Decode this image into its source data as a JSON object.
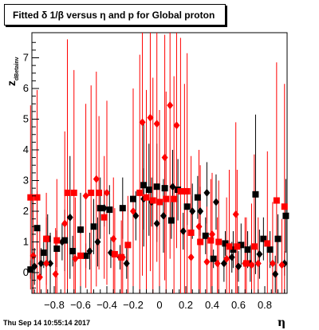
{
  "header": {
    "title": "Fitted δ 1/β versus η and p for Global proton"
  },
  "footer": {
    "timestamp": "Thu Sep 14 10:55:14 2017"
  },
  "chart_data": {
    "type": "scatter",
    "title": "Fitted δ 1/β versus η and p for Global proton",
    "xlabel": "η",
    "ylabel_main": "z",
    "ylabel_sub": "dBetainv",
    "xlim": [
      -1.0,
      1.0
    ],
    "ylim": [
      -0.75,
      7.8
    ],
    "xticks": [
      -0.8,
      -0.6,
      -0.4,
      -0.2,
      0,
      0.2,
      0.4,
      0.6,
      0.8
    ],
    "xtick_labels": [
      "−0.8",
      "−0.6",
      "−0.4",
      "−0.2",
      "0",
      "0.2",
      "0.4",
      "0.6",
      "0.8"
    ],
    "yticks": [
      0,
      1,
      2,
      3,
      4,
      5,
      6,
      7
    ],
    "ytick_labels": [
      "0",
      "1",
      "2",
      "3",
      "4",
      "5",
      "6",
      "7"
    ],
    "grid": false,
    "series": [
      {
        "color": "#000000",
        "marker": "square",
        "points": [
          {
            "x": -0.98,
            "y": 0.1,
            "err": 0.3
          },
          {
            "x": -0.93,
            "y": 1.45,
            "err": 1.2
          },
          {
            "x": -0.88,
            "y": 0.65,
            "err": 0.5
          },
          {
            "x": -0.85,
            "y": 1.1,
            "err": 0.8
          },
          {
            "x": -0.78,
            "y": 0.78,
            "err": 0.6
          },
          {
            "x": -0.72,
            "y": 1.05,
            "err": 1.0
          },
          {
            "x": -0.66,
            "y": 0.7,
            "err": 0.5
          },
          {
            "x": -0.6,
            "y": 1.4,
            "err": 1.2
          },
          {
            "x": -0.56,
            "y": 0.55,
            "err": 0.4
          },
          {
            "x": -0.5,
            "y": 1.5,
            "err": 0.9
          },
          {
            "x": -0.45,
            "y": 2.1,
            "err": 1.0
          },
          {
            "x": -0.38,
            "y": 2.05,
            "err": 0.8
          },
          {
            "x": -0.28,
            "y": 2.1,
            "err": 1.0
          },
          {
            "x": -0.2,
            "y": 2.4,
            "err": 1.2
          },
          {
            "x": -0.12,
            "y": 2.85,
            "err": 2.0
          },
          {
            "x": -0.08,
            "y": 2.7,
            "err": 1.5
          },
          {
            "x": -0.02,
            "y": 2.8,
            "err": 1.4
          },
          {
            "x": 0.04,
            "y": 2.75,
            "err": 1.0
          },
          {
            "x": 0.09,
            "y": 1.7,
            "err": 0.6
          },
          {
            "x": 0.14,
            "y": 2.7,
            "err": 1.0
          },
          {
            "x": 0.21,
            "y": 2.15,
            "err": 0.6
          },
          {
            "x": 0.29,
            "y": 2.45,
            "err": 0.7
          },
          {
            "x": 0.35,
            "y": 1.2,
            "err": 0.6
          },
          {
            "x": 0.41,
            "y": 0.45,
            "err": 0.3
          },
          {
            "x": 0.5,
            "y": 0.95,
            "err": 0.4
          },
          {
            "x": 0.56,
            "y": 0.75,
            "err": 0.6
          },
          {
            "x": 0.62,
            "y": 0.9,
            "err": 0.7
          },
          {
            "x": 0.67,
            "y": 0.75,
            "err": 0.6
          },
          {
            "x": 0.73,
            "y": 2.55,
            "err": 2.6
          },
          {
            "x": 0.79,
            "y": 1.1,
            "err": 0.7
          },
          {
            "x": 0.84,
            "y": 0.75,
            "err": 0.6
          },
          {
            "x": 0.9,
            "y": 1.1,
            "err": 0.8
          },
          {
            "x": 0.96,
            "y": 1.85,
            "err": 1.2
          }
        ]
      },
      {
        "color": "#000000",
        "marker": "diamond",
        "points": [
          {
            "x": -0.95,
            "y": 0.2,
            "err": 0.6
          },
          {
            "x": -0.9,
            "y": 0.3,
            "err": 0.5
          },
          {
            "x": -0.83,
            "y": 0.3,
            "err": 1.0
          },
          {
            "x": -0.74,
            "y": 1.0,
            "err": 0.6
          },
          {
            "x": -0.68,
            "y": 1.8,
            "err": 2.0
          },
          {
            "x": -0.6,
            "y": 1.4,
            "err": 1.0
          },
          {
            "x": -0.53,
            "y": 0.7,
            "err": 0.6
          },
          {
            "x": -0.47,
            "y": 1.0,
            "err": 0.8
          },
          {
            "x": -0.42,
            "y": 2.1,
            "err": 0.6
          },
          {
            "x": -0.37,
            "y": 0.65,
            "err": 0.5
          },
          {
            "x": -0.3,
            "y": 0.5,
            "err": 0.4
          },
          {
            "x": -0.25,
            "y": 0.3,
            "err": 0.5
          },
          {
            "x": -0.18,
            "y": 1.85,
            "err": 0.8
          },
          {
            "x": -0.12,
            "y": 2.4,
            "err": 1.0
          },
          {
            "x": -0.06,
            "y": 2.3,
            "err": 0.8
          },
          {
            "x": -0.02,
            "y": 1.6,
            "err": 0.6
          },
          {
            "x": 0.03,
            "y": 1.85,
            "err": 1.2
          },
          {
            "x": 0.1,
            "y": 2.8,
            "err": 1.2
          },
          {
            "x": 0.18,
            "y": 1.35,
            "err": 0.6
          },
          {
            "x": 0.25,
            "y": 2.0,
            "err": 0.9
          },
          {
            "x": 0.31,
            "y": 2.0,
            "err": 0.8
          },
          {
            "x": 0.36,
            "y": 2.6,
            "err": 1.0
          },
          {
            "x": 0.43,
            "y": 2.3,
            "err": 0.9
          },
          {
            "x": 0.49,
            "y": 0.3,
            "err": 0.6
          },
          {
            "x": 0.55,
            "y": 0.5,
            "err": 0.5
          },
          {
            "x": 0.6,
            "y": 0.2,
            "err": 0.5
          },
          {
            "x": 0.69,
            "y": 0.3,
            "err": 0.6
          },
          {
            "x": 0.76,
            "y": 0.6,
            "err": 0.8
          },
          {
            "x": 0.88,
            "y": -0.05,
            "err": 0.6
          },
          {
            "x": 0.95,
            "y": 0.3,
            "err": 0.4
          }
        ]
      },
      {
        "color": "#ff0000",
        "marker": "square",
        "points": [
          {
            "x": -0.98,
            "y": 2.45,
            "err": 3.0
          },
          {
            "x": -0.93,
            "y": 2.45,
            "err": 3.5
          },
          {
            "x": -0.86,
            "y": 1.1,
            "err": 1.5
          },
          {
            "x": -0.78,
            "y": 1.05,
            "err": 2.0
          },
          {
            "x": -0.7,
            "y": 2.6,
            "err": 5.0
          },
          {
            "x": -0.65,
            "y": 2.6,
            "err": 4.0
          },
          {
            "x": -0.6,
            "y": 0.55,
            "err": 1.0
          },
          {
            "x": -0.52,
            "y": 2.6,
            "err": 3.5
          },
          {
            "x": -0.46,
            "y": 2.6,
            "err": 2.5
          },
          {
            "x": -0.42,
            "y": 1.8,
            "err": 2.0
          },
          {
            "x": -0.34,
            "y": 0.6,
            "err": 1.5
          },
          {
            "x": -0.29,
            "y": 0.5,
            "err": 1.2
          },
          {
            "x": -0.24,
            "y": 0.9,
            "err": 1.6
          },
          {
            "x": -0.15,
            "y": 2.6,
            "err": 4.5
          },
          {
            "x": -0.1,
            "y": 2.45,
            "err": 3.5
          },
          {
            "x": -0.05,
            "y": 2.35,
            "err": 4.0
          },
          {
            "x": 0.0,
            "y": 2.3,
            "err": 3.0
          },
          {
            "x": 0.05,
            "y": 2.4,
            "err": 3.5
          },
          {
            "x": 0.11,
            "y": 2.4,
            "err": 4.0
          },
          {
            "x": 0.16,
            "y": 2.65,
            "err": 5.0
          },
          {
            "x": 0.21,
            "y": 2.65,
            "err": 4.5
          },
          {
            "x": 0.24,
            "y": 1.3,
            "err": 2.5
          },
          {
            "x": 0.31,
            "y": 1.0,
            "err": 2.5
          },
          {
            "x": 0.39,
            "y": 1.05,
            "err": 2.0
          },
          {
            "x": 0.45,
            "y": 1.0,
            "err": 2.0
          },
          {
            "x": 0.53,
            "y": 0.85,
            "err": 2.5
          },
          {
            "x": 0.59,
            "y": 0.85,
            "err": 2.5
          },
          {
            "x": 0.66,
            "y": 0.3,
            "err": 1.5
          },
          {
            "x": 0.72,
            "y": 0.85,
            "err": 3.0
          },
          {
            "x": 0.82,
            "y": 0.95,
            "err": 3.0
          },
          {
            "x": 0.89,
            "y": 2.35,
            "err": 4.5
          },
          {
            "x": 0.95,
            "y": 2.15,
            "err": 4.0
          }
        ]
      },
      {
        "color": "#ff0000",
        "marker": "diamond",
        "points": [
          {
            "x": -0.96,
            "y": 0.55,
            "err": 2.0
          },
          {
            "x": -0.91,
            "y": -0.15,
            "err": 1.5
          },
          {
            "x": -0.86,
            "y": 0.3,
            "err": 1.5
          },
          {
            "x": -0.79,
            "y": -0.05,
            "err": 1.5
          },
          {
            "x": -0.72,
            "y": 1.6,
            "err": 3.0
          },
          {
            "x": -0.64,
            "y": 0.45,
            "err": 2.0
          },
          {
            "x": -0.56,
            "y": 2.5,
            "err": 3.0
          },
          {
            "x": -0.48,
            "y": 3.05,
            "err": 3.5
          },
          {
            "x": -0.4,
            "y": 2.6,
            "err": 3.0
          },
          {
            "x": -0.35,
            "y": 1.1,
            "err": 2.0
          },
          {
            "x": -0.28,
            "y": 0.5,
            "err": 1.5
          },
          {
            "x": -0.2,
            "y": 2.0,
            "err": 4.0
          },
          {
            "x": -0.13,
            "y": 4.9,
            "err": 5.0
          },
          {
            "x": -0.07,
            "y": 5.05,
            "err": 5.0
          },
          {
            "x": -0.02,
            "y": 4.85,
            "err": 4.5
          },
          {
            "x": 0.04,
            "y": 3.75,
            "err": 4.0
          },
          {
            "x": 0.08,
            "y": 5.45,
            "err": 5.0
          },
          {
            "x": 0.13,
            "y": 4.8,
            "err": 4.0
          },
          {
            "x": 0.19,
            "y": 2.65,
            "err": 3.5
          },
          {
            "x": 0.24,
            "y": 0.5,
            "err": 2.0
          },
          {
            "x": 0.3,
            "y": 1.5,
            "err": 2.5
          },
          {
            "x": 0.36,
            "y": 0.35,
            "err": 1.8
          },
          {
            "x": 0.4,
            "y": 1.25,
            "err": 2.0
          },
          {
            "x": 0.44,
            "y": 0.3,
            "err": 1.5
          },
          {
            "x": 0.51,
            "y": 0.45,
            "err": 2.0
          },
          {
            "x": 0.58,
            "y": 1.9,
            "err": 3.0
          },
          {
            "x": 0.65,
            "y": 0.3,
            "err": 1.5
          },
          {
            "x": 0.7,
            "y": 0.25,
            "err": 2.0
          },
          {
            "x": 0.75,
            "y": 0.3,
            "err": 1.5
          },
          {
            "x": 0.86,
            "y": 0.3,
            "err": 2.0
          },
          {
            "x": 0.93,
            "y": 0.25,
            "err": 1.5
          }
        ]
      }
    ]
  }
}
